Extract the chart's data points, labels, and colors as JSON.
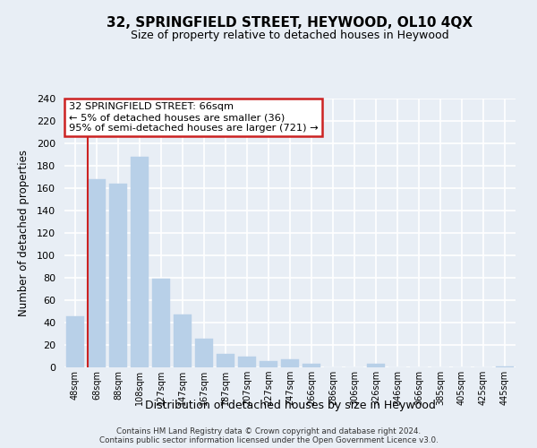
{
  "title": "32, SPRINGFIELD STREET, HEYWOOD, OL10 4QX",
  "subtitle": "Size of property relative to detached houses in Heywood",
  "xlabel": "Distribution of detached houses by size in Heywood",
  "ylabel": "Number of detached properties",
  "bar_labels": [
    "48sqm",
    "68sqm",
    "88sqm",
    "108sqm",
    "127sqm",
    "147sqm",
    "167sqm",
    "187sqm",
    "207sqm",
    "227sqm",
    "247sqm",
    "266sqm",
    "286sqm",
    "306sqm",
    "326sqm",
    "346sqm",
    "366sqm",
    "385sqm",
    "405sqm",
    "425sqm",
    "445sqm"
  ],
  "bar_values": [
    46,
    168,
    164,
    188,
    79,
    47,
    26,
    12,
    10,
    6,
    7,
    3,
    0,
    0,
    3,
    0,
    0,
    0,
    0,
    0,
    1
  ],
  "bar_color": "#b8d0e8",
  "highlight_color": "#cc2222",
  "vline_position": 0.5,
  "annotation_title": "32 SPRINGFIELD STREET: 66sqm",
  "annotation_line1": "← 5% of detached houses are smaller (36)",
  "annotation_line2": "95% of semi-detached houses are larger (721) →",
  "annotation_box_color": "#ffffff",
  "annotation_box_edge": "#cc2222",
  "ylim": [
    0,
    240
  ],
  "yticks": [
    0,
    20,
    40,
    60,
    80,
    100,
    120,
    140,
    160,
    180,
    200,
    220,
    240
  ],
  "footnote1": "Contains HM Land Registry data © Crown copyright and database right 2024.",
  "footnote2": "Contains public sector information licensed under the Open Government Licence v3.0.",
  "bg_color": "#e8eef5",
  "plot_bg_color": "#e8eef5",
  "grid_color": "#ffffff",
  "title_fontsize": 11,
  "subtitle_fontsize": 9
}
